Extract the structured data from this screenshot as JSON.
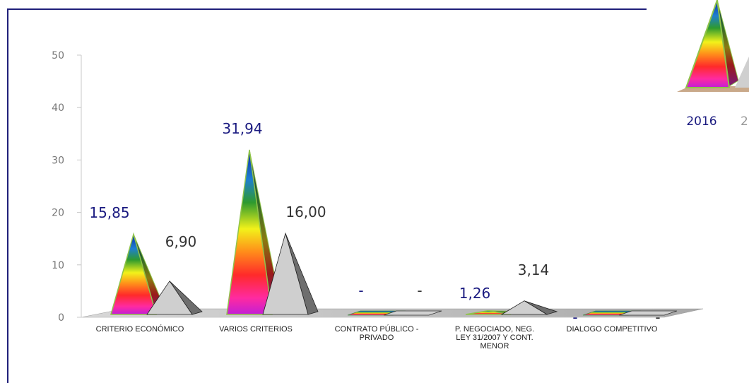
{
  "chart_data": {
    "type": "bar",
    "categories": [
      "CRITERIO ECONÓMICO",
      "VARIOS CRITERIOS",
      "CONTRATO PÚBLICO - PRIVADO",
      "P. NEGOCIADO, NEG. LEY 31/2007 Y CONT. MENOR",
      "DIALOGO COMPETITIVO"
    ],
    "category_lines": [
      [
        "CRITERIO ECONÓMICO"
      ],
      [
        "VARIOS CRITERIOS"
      ],
      [
        "CONTRATO PÚBLICO -",
        "PRIVADO"
      ],
      [
        "P. NEGOCIADO, NEG.",
        "LEY 31/2007 Y CONT.",
        "MENOR"
      ],
      [
        "DIALOGO COMPETITIVO"
      ]
    ],
    "series": [
      {
        "name": "2016",
        "values": [
          15.85,
          31.94,
          0,
          1.26,
          0
        ],
        "labels": [
          "15,85",
          "31,94",
          "-",
          "1,26",
          "-"
        ],
        "color": "#1a1a80"
      },
      {
        "name": "2",
        "values": [
          6.9,
          16.0,
          0,
          3.14,
          0
        ],
        "labels": [
          "6,90",
          "16,00",
          "-",
          "3,14",
          "-"
        ],
        "color": "#333333"
      }
    ],
    "ylim": [
      0,
      50
    ],
    "yticks": [
      0,
      10,
      20,
      30,
      40,
      50
    ],
    "legend_position": "top-right",
    "colors": {
      "series2_light": "#cfcfcf",
      "series2_dark": "#6e6e6e",
      "floor": "#b8b8b8",
      "legend_floor": "#c9a98a",
      "pyramid_edge": "#8fc34a",
      "axis": "#c8c8c8",
      "frame": "#1f1f7a"
    }
  }
}
